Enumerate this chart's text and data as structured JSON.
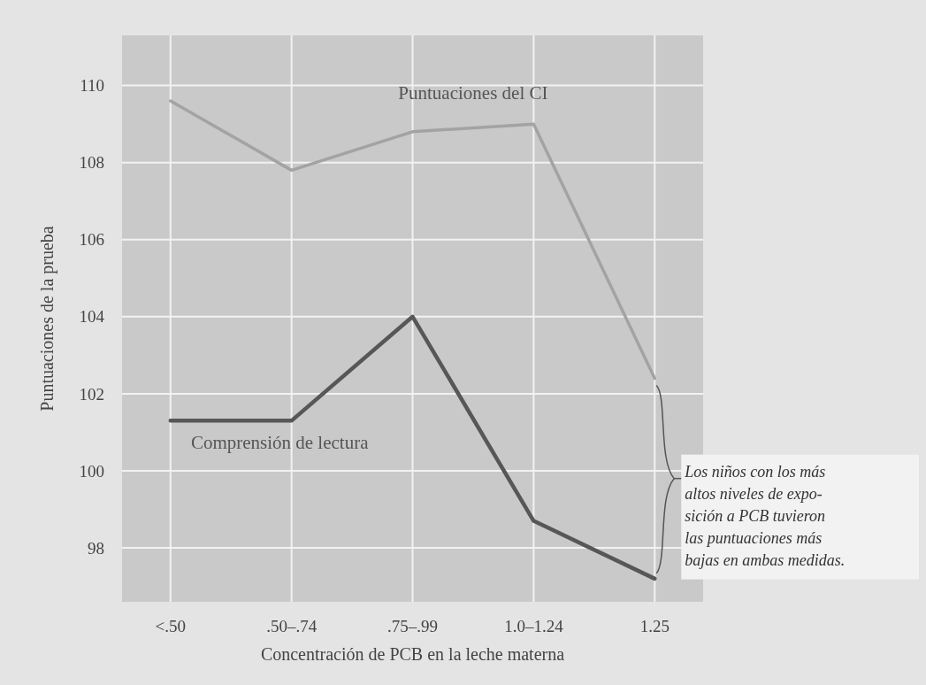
{
  "chart_data": {
    "type": "line",
    "xlabel": "Concentración de PCB en la leche materna",
    "ylabel": "Puntuaciones de la prueba",
    "categories": [
      "<.50",
      ".50–.74",
      ".75–.99",
      "1.0–1.24",
      "1.25"
    ],
    "series": [
      {
        "name": "Puntuaciones del CI",
        "color": "#a3a3a3",
        "values": [
          109.6,
          107.8,
          108.8,
          109.0,
          102.4
        ]
      },
      {
        "name": "Comprensión de lectura",
        "color": "#575757",
        "values": [
          101.3,
          101.3,
          104.0,
          98.7,
          97.2
        ]
      }
    ],
    "ylim": [
      96.6,
      111.3
    ],
    "yticks": [
      98,
      100,
      102,
      104,
      106,
      108,
      110
    ],
    "grid": true,
    "legend": false,
    "annotations": [
      "Los niños con los más\naltos niveles de expo-\nsición a PCB tuvieron\nlas puntuaciones más\nbajas en ambas medidas."
    ]
  }
}
